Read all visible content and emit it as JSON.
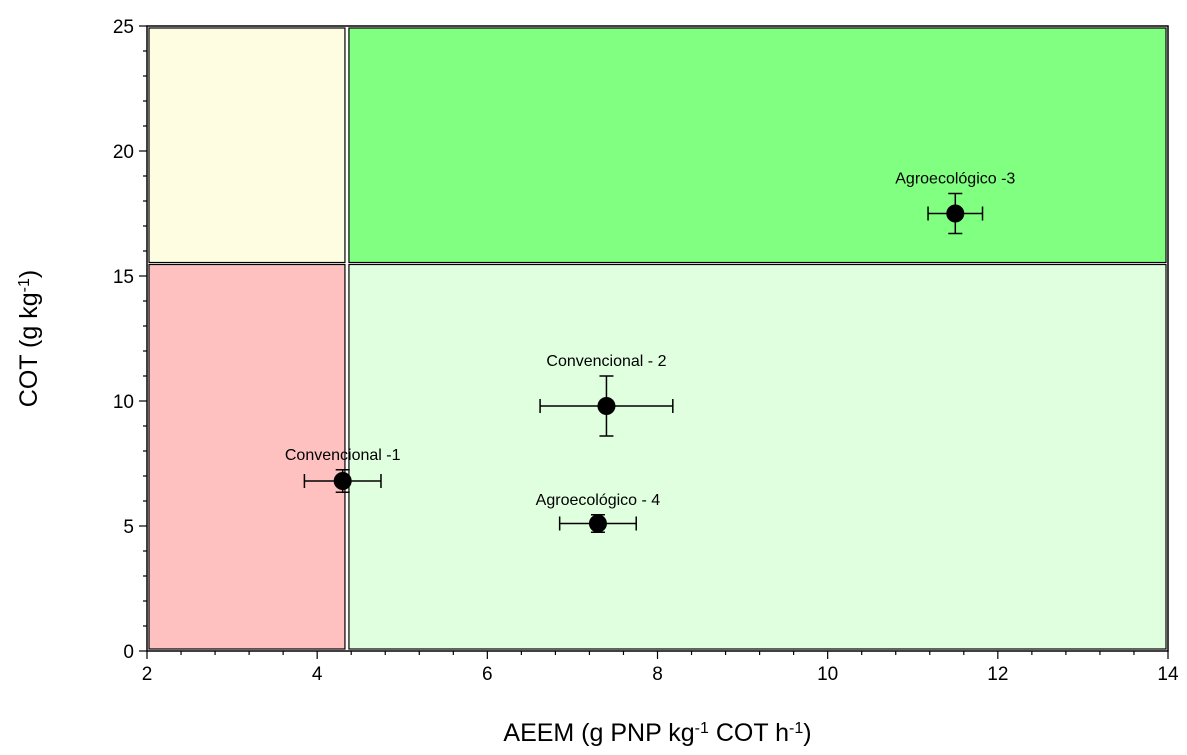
{
  "chart_data": {
    "type": "scatter",
    "title": "",
    "xlabel": {
      "parts": [
        {
          "text": "AEEM (g PNP kg"
        },
        {
          "text": "-1",
          "sup": true
        },
        {
          "text": " COT h"
        },
        {
          "text": "-1",
          "sup": true
        },
        {
          "text": ")"
        }
      ]
    },
    "ylabel": {
      "parts": [
        {
          "text": "COT (g kg"
        },
        {
          "text": "-1",
          "sup": true
        },
        {
          "text": ")"
        }
      ]
    },
    "xlim": [
      2,
      14
    ],
    "ylim": [
      0,
      25
    ],
    "x_ticks": [
      "2",
      "4",
      "6",
      "8",
      "10",
      "12",
      "14"
    ],
    "y_ticks": [
      "0",
      "5",
      "10",
      "15",
      "20",
      "25"
    ],
    "grid": false,
    "legend": "none",
    "quadrants": {
      "x_threshold": 4.35,
      "y_threshold": 15.5,
      "colors": {
        "low_x_low_y": "#ffc0c0",
        "low_x_high_y": "#fefde2",
        "high_x_low_y": "#dfffdf",
        "high_x_high_y": "#80ff80"
      }
    },
    "points": [
      {
        "label": "Convencional -1",
        "x": 4.3,
        "y": 6.8,
        "xerr": 0.45,
        "yerr": 0.45
      },
      {
        "label": "Convencional - 2",
        "x": 7.4,
        "y": 9.8,
        "xerr": 0.78,
        "yerr": 1.2
      },
      {
        "label": "Agroecológico -3",
        "x": 11.5,
        "y": 17.5,
        "xerr": 0.32,
        "yerr": 0.8
      },
      {
        "label": "Agroecológico - 4",
        "x": 7.3,
        "y": 5.1,
        "xerr": 0.45,
        "yerr": 0.35
      }
    ]
  }
}
